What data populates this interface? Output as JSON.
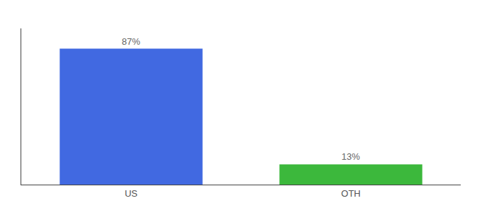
{
  "chart_data": {
    "type": "bar",
    "categories": [
      "US",
      "OTH"
    ],
    "values": [
      87,
      13
    ],
    "value_labels": [
      "87%",
      "13%"
    ],
    "colors": [
      "#4169e1",
      "#3cb83c"
    ],
    "ylim": [
      0,
      100
    ],
    "data_labels": true,
    "tick_labels": "x",
    "grid": false
  }
}
